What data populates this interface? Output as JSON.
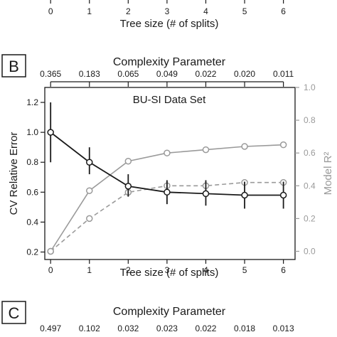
{
  "top_strip": {
    "x_ticks": [
      "0",
      "1",
      "2",
      "3",
      "4",
      "5",
      "6"
    ],
    "x_label": "Tree size (# of splits)"
  },
  "panel_b": {
    "panel_letter": "B",
    "top_axis_title": "Complexity Parameter",
    "top_ticks": [
      "0.365",
      "0.183",
      "0.065",
      "0.049",
      "0.022",
      "0.020",
      "0.011"
    ]
  },
  "panel_c": {
    "panel_letter": "C",
    "top_axis_title": "Complexity Parameter",
    "top_ticks": [
      "0.497",
      "0.102",
      "0.032",
      "0.023",
      "0.022",
      "0.018",
      "0.013"
    ]
  },
  "colors": {
    "black": "#1a1a1a",
    "gray": "#9a9a9a"
  },
  "chart_data": {
    "type": "line",
    "title": "BU-SI Data Set",
    "xlabel": "Tree size (# of splits)",
    "ylabel": "CV Relative Error",
    "y2label": "Model R²",
    "x": [
      0,
      1,
      2,
      3,
      4,
      5,
      6
    ],
    "x_ticks": [
      "0",
      "1",
      "2",
      "3",
      "4",
      "5",
      "6"
    ],
    "xlim": [
      -0.15,
      6.3
    ],
    "ylim": [
      0.15,
      1.3
    ],
    "y_ticks": [
      "0.2",
      "0.4",
      "0.6",
      "0.8",
      "1.0",
      "1.2"
    ],
    "y2lim": [
      -0.05,
      1.0
    ],
    "y2_ticks": [
      "0.0",
      "0.2",
      "0.4",
      "0.6",
      "0.8",
      "1.0"
    ],
    "grid": false,
    "series": [
      {
        "axis": "left",
        "style": "solid",
        "color": "#1a1a1a",
        "values": [
          1.0,
          0.8,
          0.64,
          0.6,
          0.59,
          0.58,
          0.58
        ],
        "error_low": [
          0.8,
          0.72,
          0.57,
          0.52,
          0.51,
          0.49,
          0.49
        ],
        "error_high": [
          1.2,
          0.9,
          0.72,
          0.68,
          0.68,
          0.67,
          0.67
        ]
      },
      {
        "axis": "right",
        "style": "solid",
        "color": "#9a9a9a",
        "values": [
          0.0,
          0.37,
          0.55,
          0.6,
          0.62,
          0.64,
          0.65
        ]
      },
      {
        "axis": "right",
        "style": "dashed",
        "color": "#9a9a9a",
        "values": [
          0.0,
          0.2,
          0.36,
          0.4,
          0.4,
          0.42,
          0.42
        ]
      }
    ]
  }
}
